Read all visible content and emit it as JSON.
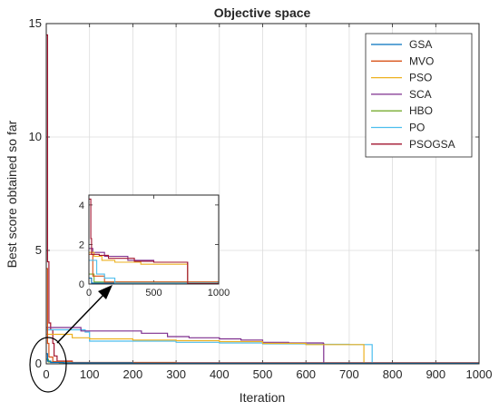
{
  "chart_data": {
    "type": "line",
    "title": "Objective space",
    "xlabel": "Iteration",
    "ylabel": "Best score obtained so far",
    "xlim": [
      0,
      1000
    ],
    "ylim": [
      0,
      15
    ],
    "xticks": [
      "0",
      "100",
      "200",
      "300",
      "400",
      "500",
      "600",
      "700",
      "800",
      "900",
      "1000"
    ],
    "yticks": [
      "0",
      "5",
      "10",
      "15"
    ],
    "grid": true,
    "legend_position": "top-right",
    "series": [
      {
        "name": "GSA",
        "color": "#0072BD",
        "points": [
          [
            1,
            0.45
          ],
          [
            3,
            0.12
          ],
          [
            10,
            0.06
          ],
          [
            40,
            0.04
          ],
          [
            200,
            0.03
          ],
          [
            1000,
            0.03
          ]
        ]
      },
      {
        "name": "MVO",
        "color": "#D95319",
        "points": [
          [
            1,
            4.2
          ],
          [
            3,
            0.9
          ],
          [
            6,
            0.3
          ],
          [
            15,
            0.1
          ],
          [
            60,
            0.06
          ],
          [
            300,
            0.04
          ],
          [
            1000,
            0.03
          ]
        ]
      },
      {
        "name": "PSO",
        "color": "#EDB120",
        "points": [
          [
            1,
            1.3
          ],
          [
            60,
            1.15
          ],
          [
            100,
            1.1
          ],
          [
            200,
            1.05
          ],
          [
            300,
            1.02
          ],
          [
            400,
            0.98
          ],
          [
            500,
            0.9
          ],
          [
            600,
            0.85
          ],
          [
            733,
            0.85
          ],
          [
            734,
            0.03
          ],
          [
            1000,
            0.03
          ]
        ]
      },
      {
        "name": "SCA",
        "color": "#7E2F8E",
        "points": [
          [
            1,
            1.6
          ],
          [
            80,
            1.45
          ],
          [
            200,
            1.45
          ],
          [
            220,
            1.35
          ],
          [
            280,
            1.2
          ],
          [
            330,
            1.15
          ],
          [
            400,
            1.1
          ],
          [
            450,
            1.05
          ],
          [
            500,
            0.95
          ],
          [
            560,
            0.92
          ],
          [
            640,
            0.9
          ],
          [
            641,
            0.03
          ],
          [
            1000,
            0.03
          ]
        ]
      },
      {
        "name": "HBO",
        "color": "#77AC30",
        "points": [
          [
            1,
            0.2
          ],
          [
            5,
            0.08
          ],
          [
            30,
            0.05
          ],
          [
            200,
            0.03
          ],
          [
            1000,
            0.03
          ]
        ]
      },
      {
        "name": "PO",
        "color": "#4DBEEE",
        "points": [
          [
            1,
            1.5
          ],
          [
            90,
            1.4
          ],
          [
            100,
            1.0
          ],
          [
            200,
            1.0
          ],
          [
            300,
            0.95
          ],
          [
            400,
            0.92
          ],
          [
            500,
            0.88
          ],
          [
            600,
            0.86
          ],
          [
            700,
            0.85
          ],
          [
            752,
            0.85
          ],
          [
            753,
            0.03
          ],
          [
            1000,
            0.03
          ]
        ]
      },
      {
        "name": "PSOGSA",
        "color": "#A2142F",
        "points": [
          [
            1,
            14.5
          ],
          [
            3,
            4.5
          ],
          [
            6,
            1.8
          ],
          [
            10,
            1.5
          ],
          [
            15,
            0.9
          ],
          [
            18,
            0.35
          ],
          [
            25,
            0.12
          ],
          [
            60,
            0.05
          ],
          [
            1000,
            0.03
          ]
        ]
      }
    ],
    "inset": {
      "xlim": [
        0,
        1000
      ],
      "ylim": [
        0,
        4.5
      ],
      "xticks": [
        "0",
        "500",
        "1000"
      ],
      "yticks": [
        "0",
        "2",
        "4"
      ],
      "series": [
        {
          "name": "PSOGSA",
          "color": "#A2142F",
          "points": [
            [
              1,
              4.3
            ],
            [
              15,
              2.3
            ],
            [
              20,
              1.5
            ],
            [
              80,
              1.45
            ],
            [
              150,
              1.3
            ],
            [
              350,
              1.15
            ],
            [
              500,
              1.1
            ],
            [
              760,
              1.1
            ],
            [
              761,
              0.02
            ],
            [
              1000,
              0.02
            ]
          ]
        },
        {
          "name": "PSO",
          "color": "#EDB120",
          "points": [
            [
              1,
              1.6
            ],
            [
              40,
              1.4
            ],
            [
              100,
              1.2
            ],
            [
              200,
              1.1
            ],
            [
              400,
              1.0
            ],
            [
              760,
              0.95
            ],
            [
              761,
              0.02
            ],
            [
              1000,
              0.02
            ]
          ]
        },
        {
          "name": "SCA",
          "color": "#7E2F8E",
          "points": [
            [
              1,
              1.8
            ],
            [
              30,
              1.6
            ],
            [
              120,
              1.4
            ],
            [
              300,
              1.2
            ],
            [
              500,
              1.1
            ],
            [
              760,
              1.05
            ],
            [
              761,
              0.02
            ],
            [
              1000,
              0.02
            ]
          ]
        },
        {
          "name": "PO",
          "color": "#4DBEEE",
          "points": [
            [
              1,
              1.2
            ],
            [
              60,
              0.5
            ],
            [
              120,
              0.3
            ],
            [
              200,
              0.05
            ],
            [
              1000,
              0.02
            ]
          ]
        },
        {
          "name": "MVO",
          "color": "#D95319",
          "points": [
            [
              1,
              1.5
            ],
            [
              30,
              0.4
            ],
            [
              120,
              0.1
            ],
            [
              1000,
              0.02
            ]
          ]
        },
        {
          "name": "HBO",
          "color": "#77AC30",
          "points": [
            [
              1,
              0.5
            ],
            [
              40,
              0.1
            ],
            [
              1000,
              0.02
            ]
          ]
        },
        {
          "name": "GSA",
          "color": "#0072BD",
          "points": [
            [
              1,
              0.3
            ],
            [
              20,
              0.05
            ],
            [
              1000,
              0.02
            ]
          ]
        }
      ]
    }
  }
}
